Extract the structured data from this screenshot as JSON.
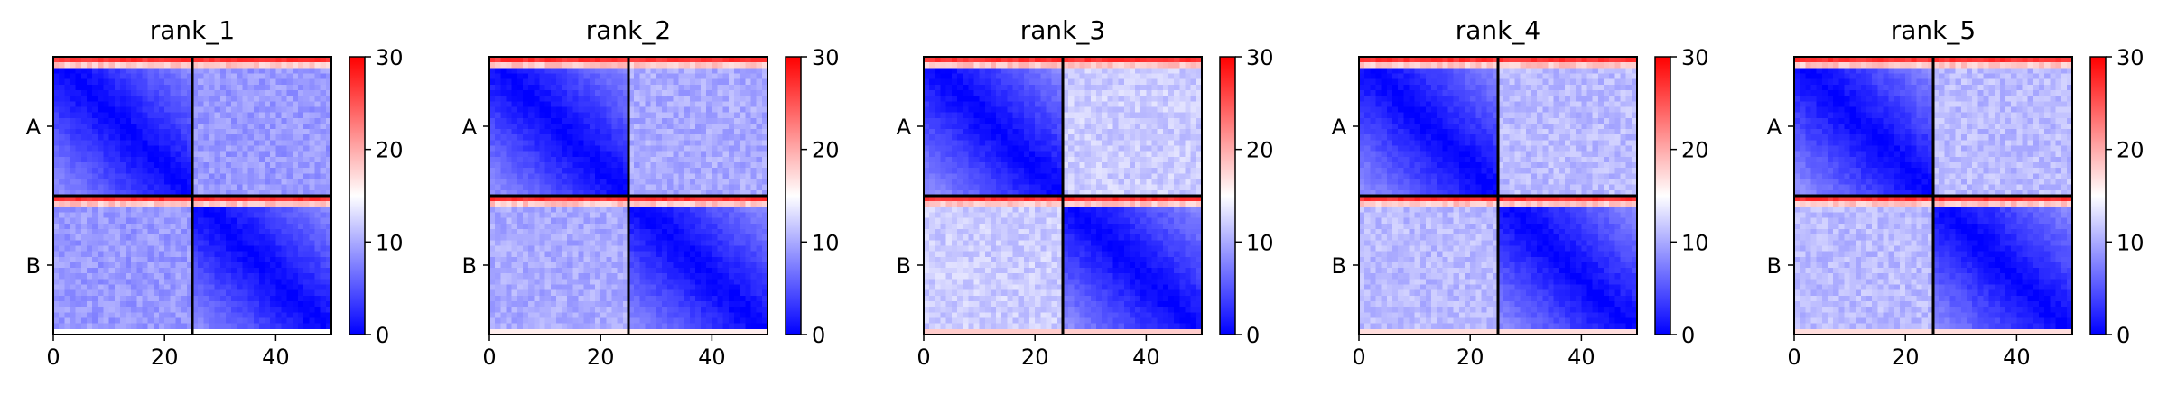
{
  "chart_data": [
    {
      "type": "heatmap",
      "title": "rank_1",
      "xlim": [
        0,
        50
      ],
      "ylim": [
        0,
        50
      ],
      "x_ticks": [
        0,
        20,
        40
      ],
      "y_tick_labels": [
        "A",
        "B"
      ],
      "segment_boundary": 25,
      "colorbar": {
        "ticks": [
          0,
          10,
          20,
          30
        ],
        "range": [
          0,
          30
        ]
      },
      "values_summary": {
        "diagonal_block_near_diag": 0,
        "diagonal_block_far": 8,
        "off_diagonal_block": 9,
        "block_edge_rows": 28
      }
    },
    {
      "type": "heatmap",
      "title": "rank_2",
      "xlim": [
        0,
        50
      ],
      "ylim": [
        0,
        50
      ],
      "x_ticks": [
        0,
        20,
        40
      ],
      "y_tick_labels": [
        "A",
        "B"
      ],
      "segment_boundary": 25,
      "colorbar": {
        "ticks": [
          0,
          10,
          20,
          30
        ],
        "range": [
          0,
          30
        ]
      },
      "values_summary": {
        "diagonal_block_near_diag": 0,
        "diagonal_block_far": 8,
        "off_diagonal_block": 10,
        "block_edge_rows": 28
      }
    },
    {
      "type": "heatmap",
      "title": "rank_3",
      "xlim": [
        0,
        50
      ],
      "ylim": [
        0,
        50
      ],
      "x_ticks": [
        0,
        20,
        40
      ],
      "y_tick_labels": [
        "A",
        "B"
      ],
      "segment_boundary": 25,
      "colorbar": {
        "ticks": [
          0,
          10,
          20,
          30
        ],
        "range": [
          0,
          30
        ]
      },
      "values_summary": {
        "diagonal_block_near_diag": 0,
        "diagonal_block_far": 8,
        "off_diagonal_block": 12,
        "block_edge_rows": 28
      }
    },
    {
      "type": "heatmap",
      "title": "rank_4",
      "xlim": [
        0,
        50
      ],
      "ylim": [
        0,
        50
      ],
      "x_ticks": [
        0,
        20,
        40
      ],
      "y_tick_labels": [
        "A",
        "B"
      ],
      "segment_boundary": 25,
      "colorbar": {
        "ticks": [
          0,
          10,
          20,
          30
        ],
        "range": [
          0,
          30
        ]
      },
      "values_summary": {
        "diagonal_block_near_diag": 0,
        "diagonal_block_far": 8,
        "off_diagonal_block": 11,
        "block_edge_rows": 28
      }
    },
    {
      "type": "heatmap",
      "title": "rank_5",
      "xlim": [
        0,
        50
      ],
      "ylim": [
        0,
        50
      ],
      "x_ticks": [
        0,
        20,
        40
      ],
      "y_tick_labels": [
        "A",
        "B"
      ],
      "segment_boundary": 25,
      "colorbar": {
        "ticks": [
          0,
          10,
          20,
          30
        ],
        "range": [
          0,
          30
        ]
      },
      "values_summary": {
        "diagonal_block_near_diag": 0,
        "diagonal_block_far": 8,
        "off_diagonal_block": 11,
        "block_edge_rows": 28
      }
    }
  ],
  "colormap": {
    "low": "#0000ff",
    "mid": "#ffffff",
    "high": "#ff0000"
  }
}
